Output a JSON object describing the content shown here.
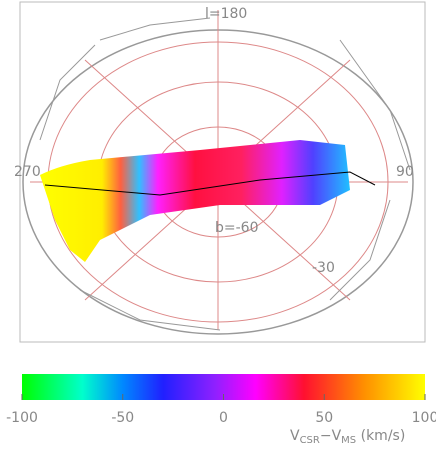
{
  "chart_data": {
    "type": "heatmap",
    "annotations": [
      "l=180",
      "270",
      "90",
      "b=-60",
      "-30"
    ],
    "colorbar": {
      "zlim": [
        -100,
        100
      ],
      "zticks": [
        -100,
        -50,
        0,
        50,
        100
      ],
      "label": {
        "v1": "V",
        "sub1": "CSR",
        "mid": "−V",
        "sub2": "MS",
        "unit": " (km/s)"
      }
    }
  }
}
